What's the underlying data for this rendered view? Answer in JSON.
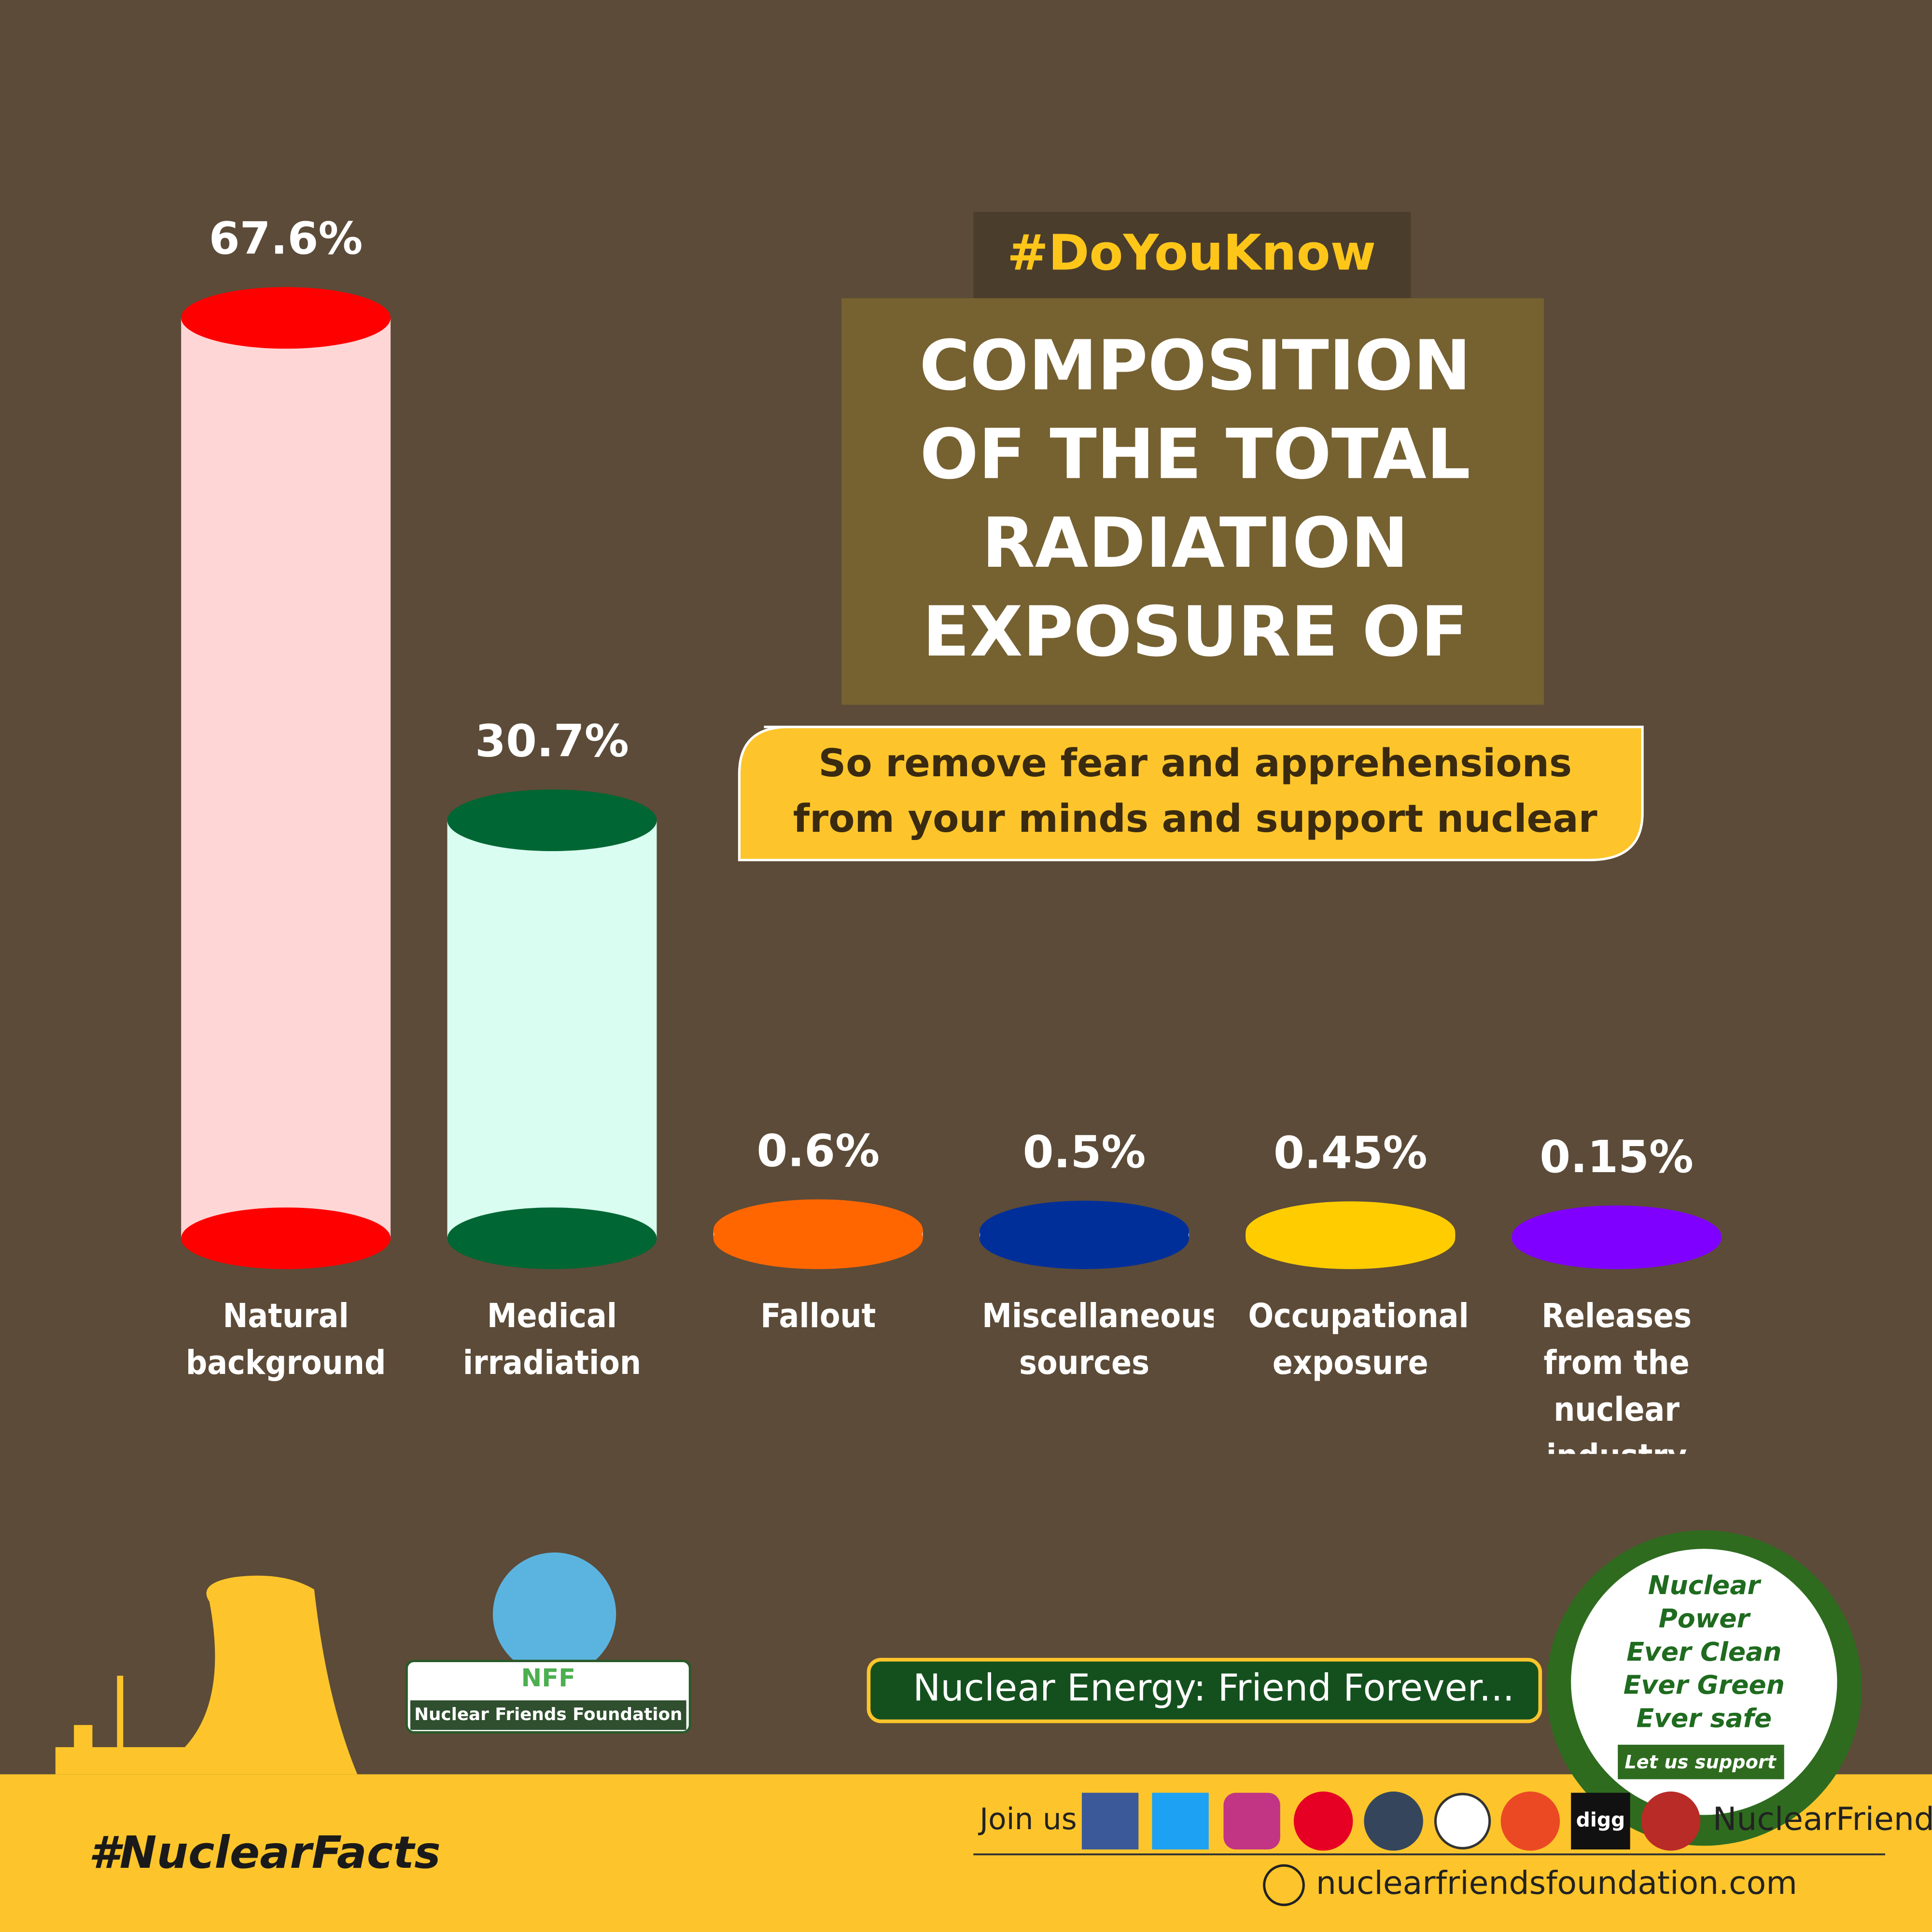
{
  "header": {
    "hashtag": "#DoYouKnow"
  },
  "chart_data": {
    "type": "bar",
    "title": "COMPOSITION OF THE TOTAL RADIATION EXPOSURE OF THE POPULATION",
    "subtitle": "So remove fear and apprehensions from your minds and support nuclear energy",
    "categories": [
      "Natural background",
      "Medical irradiation",
      "Fallout",
      "Miscellaneous sources",
      "Occupational exposure",
      "Releases from the nuclear industry"
    ],
    "values": [
      67.6,
      30.7,
      0.6,
      0.5,
      0.45,
      0.15
    ],
    "value_labels": [
      "67.6%",
      "30.7%",
      "0.6%",
      "0.5%",
      "0.45%",
      "0.15%"
    ],
    "colors": [
      "#ff0000",
      "#006633",
      "#ff6600",
      "#002f99",
      "#ffcc00",
      "#8000ff"
    ],
    "body_colors": [
      "#ffd6d6",
      "#d9fdf0",
      "#ffd0b0",
      "#c4d6ff",
      "#ffffcc",
      "#cc99ff"
    ]
  },
  "footer": {
    "org_short": "NFF",
    "org_name": "Nuclear Friends Foundation",
    "tagline": "Nuclear Energy: Friend Forever...",
    "badge": [
      "Nuclear",
      "Power",
      "Ever Clean",
      "Ever Green",
      "Ever safe"
    ],
    "badge_ribbon": "Let us support",
    "hashtag": "#NuclearFacts",
    "join": "Join us :",
    "digg": "digg",
    "handle": "NuclearFriends",
    "website": "nuclearfriendsfoundation.com"
  }
}
